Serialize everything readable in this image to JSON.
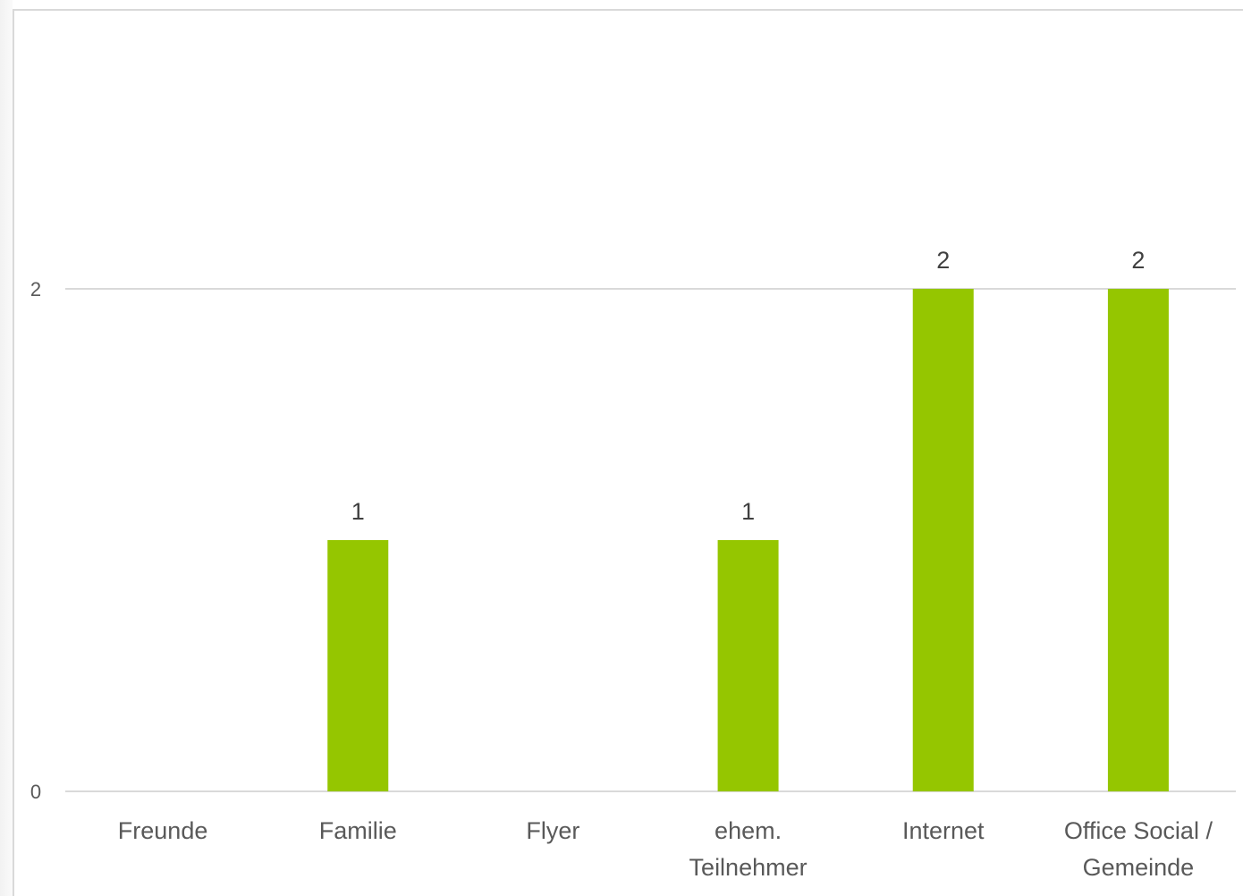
{
  "chart_data": {
    "type": "bar",
    "categories": [
      "Freunde",
      "Familie",
      "Flyer",
      "ehem. Teilnehmer",
      "Internet",
      "Office Social / Gemeinde"
    ],
    "category_lines": [
      [
        "Freunde"
      ],
      [
        "Familie"
      ],
      [
        "Flyer"
      ],
      [
        "ehem.",
        "Teilnehmer"
      ],
      [
        "Internet"
      ],
      [
        "Office Social /",
        "Gemeinde"
      ]
    ],
    "values": [
      0,
      1,
      0,
      1,
      2,
      2
    ],
    "data_labels": [
      "",
      "1",
      "",
      "1",
      "2",
      "2"
    ],
    "yticks": [
      "0",
      "2"
    ],
    "ylim": [
      0,
      2.9
    ],
    "title": "",
    "xlabel": "",
    "ylabel": "",
    "grid": true,
    "legend": "none",
    "bar_color": "#95c600",
    "grid_color": "#d9d9d9",
    "text_color": "#595959"
  }
}
